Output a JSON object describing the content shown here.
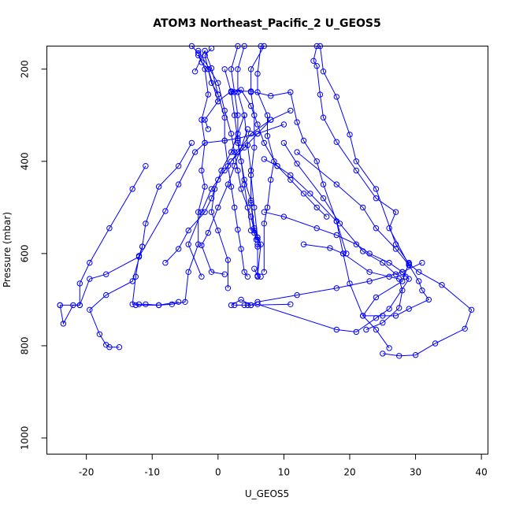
{
  "chart_data": {
    "type": "line",
    "title": "ATOM3 Northeast_Pacific_2 U_GEOS5",
    "xlabel": "U_GEOS5",
    "ylabel": "Pressure (mbar)",
    "xlim": [
      -26,
      41
    ],
    "ylim": [
      1035,
      150
    ],
    "y_reversed": true,
    "grid": false,
    "xticks": [
      -20,
      -10,
      0,
      10,
      20,
      30,
      40
    ],
    "yticks": [
      200,
      400,
      600,
      800,
      1000
    ],
    "line_color": "#0000ff",
    "marker": "open-circle",
    "series": [
      {
        "points": [
          [
            -4,
            150
          ],
          [
            -3,
            165
          ],
          [
            -2,
            200
          ],
          [
            -1.5,
            255
          ],
          [
            -2.5,
            310
          ],
          [
            -2,
            360
          ],
          [
            -2.5,
            420
          ],
          [
            -2,
            455
          ],
          [
            -3,
            510
          ],
          [
            -3,
            580
          ],
          [
            -4.5,
            640
          ],
          [
            -5,
            705
          ],
          [
            -7,
            710
          ],
          [
            -9,
            712
          ],
          [
            -12.5,
            712
          ]
        ]
      },
      {
        "points": [
          [
            -24,
            712
          ],
          [
            -23.5,
            752
          ],
          [
            -22,
            712
          ],
          [
            -21,
            712
          ],
          [
            -21,
            665
          ],
          [
            -19.5,
            620
          ],
          [
            -16.5,
            545
          ],
          [
            -13,
            460
          ],
          [
            -11,
            410
          ]
        ]
      },
      {
        "points": [
          [
            -15,
            803
          ],
          [
            -16.5,
            803
          ],
          [
            -17,
            798
          ],
          [
            -18,
            775
          ],
          [
            -19.5,
            722
          ],
          [
            -17,
            690
          ],
          [
            -13,
            660
          ],
          [
            -11.5,
            585
          ],
          [
            -11,
            535
          ],
          [
            -9,
            455
          ],
          [
            -6,
            410
          ],
          [
            -4,
            360
          ]
        ]
      },
      {
        "points": [
          [
            -24,
            712
          ],
          [
            -21,
            712
          ],
          [
            -19.5,
            655
          ],
          [
            -17,
            645
          ],
          [
            -12,
            607
          ],
          [
            -8,
            508
          ],
          [
            -6,
            450
          ],
          [
            -3.5,
            380
          ],
          [
            -2,
            360
          ],
          [
            1,
            355
          ],
          [
            3,
            350
          ],
          [
            6,
            340
          ],
          [
            10,
            320
          ]
        ]
      },
      {
        "points": [
          [
            4,
            150
          ],
          [
            3,
            200
          ],
          [
            3,
            250
          ],
          [
            4,
            300
          ],
          [
            4.5,
            365
          ],
          [
            5,
            420
          ],
          [
            5,
            490
          ],
          [
            5.5,
            555
          ],
          [
            6,
            570
          ],
          [
            6,
            585
          ],
          [
            6,
            650
          ],
          [
            6.5,
            650
          ]
        ]
      },
      {
        "points": [
          [
            6.5,
            150
          ],
          [
            6,
            210
          ],
          [
            6,
            250
          ],
          [
            7.5,
            300
          ],
          [
            7.5,
            345
          ],
          [
            8.5,
            400
          ],
          [
            8,
            440
          ],
          [
            7.5,
            500
          ],
          [
            7,
            535
          ],
          [
            7,
            640
          ]
        ]
      },
      {
        "points": [
          [
            1,
            200
          ],
          [
            2,
            250
          ],
          [
            2.5,
            300
          ],
          [
            3,
            355
          ],
          [
            4,
            440
          ],
          [
            5,
            485
          ],
          [
            5.5,
            545
          ],
          [
            6,
            565
          ],
          [
            6.5,
            580
          ],
          [
            6,
            648
          ],
          [
            5.5,
            633
          ]
        ]
      },
      {
        "points": [
          [
            -3.5,
            205
          ],
          [
            -2,
            160
          ],
          [
            -1,
            198
          ],
          [
            0,
            255
          ],
          [
            1,
            305
          ],
          [
            1,
            355
          ],
          [
            1.5,
            410
          ],
          [
            2,
            455
          ],
          [
            2.5,
            500
          ],
          [
            3,
            548
          ],
          [
            3.5,
            590
          ],
          [
            4,
            640
          ],
          [
            4.5,
            650
          ]
        ]
      },
      {
        "points": [
          [
            2,
            250
          ],
          [
            3.5,
            245
          ],
          [
            5,
            280
          ],
          [
            6,
            320
          ],
          [
            7,
            360
          ],
          [
            9,
            410
          ],
          [
            11,
            440
          ],
          [
            13,
            470
          ],
          [
            15,
            500
          ],
          [
            16.5,
            520
          ]
        ]
      },
      {
        "points": [
          [
            -1.5,
            330
          ],
          [
            -2,
            310
          ],
          [
            0,
            270
          ],
          [
            2,
            248
          ],
          [
            5,
            248
          ],
          [
            8,
            258
          ],
          [
            11,
            250
          ],
          [
            12,
            315
          ],
          [
            13,
            355
          ],
          [
            15,
            400
          ],
          [
            16,
            450
          ],
          [
            18,
            530
          ],
          [
            19,
            600
          ],
          [
            20,
            665
          ],
          [
            22,
            735
          ],
          [
            24,
            765
          ],
          [
            26,
            805
          ]
        ]
      },
      {
        "points": [
          [
            0,
            270
          ],
          [
            -1.5,
            200
          ],
          [
            -2,
            170
          ],
          [
            -1,
            155
          ]
        ]
      },
      {
        "points": [
          [
            -6,
            705
          ],
          [
            -9,
            712
          ],
          [
            -11,
            710
          ],
          [
            -12,
            710
          ],
          [
            -13,
            710
          ],
          [
            -12.5,
            650
          ],
          [
            -12,
            605
          ],
          [
            -11.5,
            585
          ]
        ]
      },
      {
        "points": [
          [
            -3,
            160
          ],
          [
            0,
            230
          ],
          [
            1,
            290
          ],
          [
            2,
            340
          ],
          [
            2.5,
            380
          ],
          [
            3,
            420
          ],
          [
            3.5,
            460
          ],
          [
            5,
            520
          ],
          [
            5.5,
            550
          ],
          [
            5.8,
            570
          ]
        ]
      },
      {
        "points": [
          [
            0,
            255
          ],
          [
            -1,
            230
          ],
          [
            -1.5,
            200
          ],
          [
            -2.5,
            185
          ],
          [
            -3,
            170
          ]
        ]
      },
      {
        "points": [
          [
            3,
            150
          ],
          [
            2,
            200
          ],
          [
            2.5,
            250
          ],
          [
            3,
            300
          ],
          [
            3,
            360
          ],
          [
            3.5,
            400
          ],
          [
            4,
            450
          ],
          [
            4.5,
            500
          ],
          [
            5,
            550
          ]
        ]
      },
      {
        "points": [
          [
            7,
            150
          ],
          [
            5,
            200
          ],
          [
            5,
            250
          ],
          [
            5.5,
            300
          ],
          [
            5.5,
            370
          ],
          [
            5,
            430
          ],
          [
            5.5,
            500
          ],
          [
            6,
            565
          ],
          [
            6,
            580
          ]
        ]
      },
      {
        "points": [
          [
            -8,
            620
          ],
          [
            -6,
            590
          ],
          [
            -4.5,
            550
          ],
          [
            -2,
            510
          ],
          [
            -1,
            480
          ],
          [
            0,
            440
          ],
          [
            2,
            400
          ],
          [
            4,
            370
          ],
          [
            6,
            340
          ],
          [
            8,
            310
          ]
        ]
      },
      {
        "points": [
          [
            -2.5,
            650
          ],
          [
            -4.5,
            580
          ],
          [
            -2.5,
            510
          ],
          [
            -1,
            460
          ],
          [
            1,
            420
          ],
          [
            3,
            380
          ],
          [
            5,
            340
          ],
          [
            8,
            310
          ],
          [
            11,
            290
          ]
        ]
      },
      {
        "points": [
          [
            2,
            712
          ],
          [
            3.5,
            700
          ],
          [
            5,
            712
          ],
          [
            6,
            705
          ],
          [
            12,
            690
          ],
          [
            18,
            675
          ],
          [
            23,
            660
          ],
          [
            28,
            640
          ],
          [
            31,
            620
          ]
        ]
      },
      {
        "points": [
          [
            1,
            645
          ],
          [
            -1,
            640
          ],
          [
            -2.5,
            582
          ],
          [
            -1.5,
            555
          ],
          [
            0,
            500
          ],
          [
            1.5,
            450
          ],
          [
            2.5,
            410
          ],
          [
            3.5,
            370
          ],
          [
            4.5,
            330
          ]
        ]
      },
      {
        "points": [
          [
            1.5,
            675
          ],
          [
            1.5,
            614
          ],
          [
            0,
            550
          ],
          [
            -1,
            510
          ],
          [
            -0.5,
            460
          ],
          [
            0.5,
            420
          ],
          [
            2,
            380
          ],
          [
            3,
            340
          ],
          [
            4,
            300
          ]
        ]
      },
      {
        "points": [
          [
            2.5,
            712
          ],
          [
            4,
            712
          ],
          [
            4.5,
            712
          ],
          [
            5,
            712
          ],
          [
            11,
            710
          ]
        ]
      },
      {
        "points": [
          [
            15,
            150
          ],
          [
            14.5,
            182
          ],
          [
            15,
            193
          ],
          [
            15.5,
            255
          ],
          [
            16,
            305
          ],
          [
            18,
            358
          ],
          [
            21,
            420
          ],
          [
            24,
            480
          ],
          [
            27,
            510
          ],
          [
            26,
            545
          ],
          [
            29,
            625
          ]
        ]
      },
      {
        "points": [
          [
            15.5,
            150
          ],
          [
            16,
            205
          ],
          [
            18,
            260
          ],
          [
            20,
            342
          ],
          [
            21,
            400
          ],
          [
            24,
            460
          ],
          [
            27,
            580
          ],
          [
            29,
            622
          ],
          [
            30.5,
            640
          ],
          [
            34,
            668
          ],
          [
            38.5,
            722
          ],
          [
            37.5,
            763
          ],
          [
            33,
            795
          ],
          [
            30,
            820
          ],
          [
            27.5,
            822
          ],
          [
            25,
            817
          ]
        ]
      },
      {
        "points": [
          [
            12,
            380
          ],
          [
            18,
            450
          ],
          [
            22,
            500
          ],
          [
            24,
            545
          ],
          [
            27,
            590
          ],
          [
            29,
            625
          ],
          [
            30.5,
            660
          ],
          [
            31,
            680
          ],
          [
            32,
            700
          ],
          [
            29,
            720
          ],
          [
            27,
            735
          ],
          [
            25,
            735
          ],
          [
            22,
            735
          ],
          [
            24,
            695
          ],
          [
            28,
            660
          ],
          [
            29,
            620
          ]
        ]
      },
      {
        "points": [
          [
            22.5,
            765
          ],
          [
            25,
            750
          ],
          [
            27.5,
            718
          ],
          [
            28,
            680
          ],
          [
            27.5,
            655
          ],
          [
            26,
            650
          ],
          [
            23,
            640
          ],
          [
            19,
            600
          ],
          [
            17,
            588
          ],
          [
            13,
            580
          ]
        ]
      },
      {
        "points": [
          [
            7,
            510
          ],
          [
            10,
            520
          ],
          [
            15,
            545
          ],
          [
            18,
            560
          ],
          [
            21,
            580
          ],
          [
            23,
            600
          ],
          [
            26,
            620
          ],
          [
            28,
            640
          ],
          [
            29,
            655
          ],
          [
            26,
            720
          ],
          [
            24,
            740
          ],
          [
            21,
            770
          ],
          [
            18,
            765
          ],
          [
            6,
            710
          ]
        ]
      },
      {
        "points": [
          [
            10,
            360
          ],
          [
            12,
            405
          ],
          [
            16,
            480
          ],
          [
            18.5,
            535
          ],
          [
            22,
            595
          ],
          [
            25,
            620
          ],
          [
            27,
            645
          ],
          [
            28.5,
            650
          ]
        ]
      },
      {
        "points": [
          [
            19.5,
            600
          ],
          [
            18,
            530
          ],
          [
            14,
            470
          ],
          [
            11,
            430
          ],
          [
            9,
            410
          ],
          [
            7,
            395
          ]
        ]
      }
    ]
  }
}
